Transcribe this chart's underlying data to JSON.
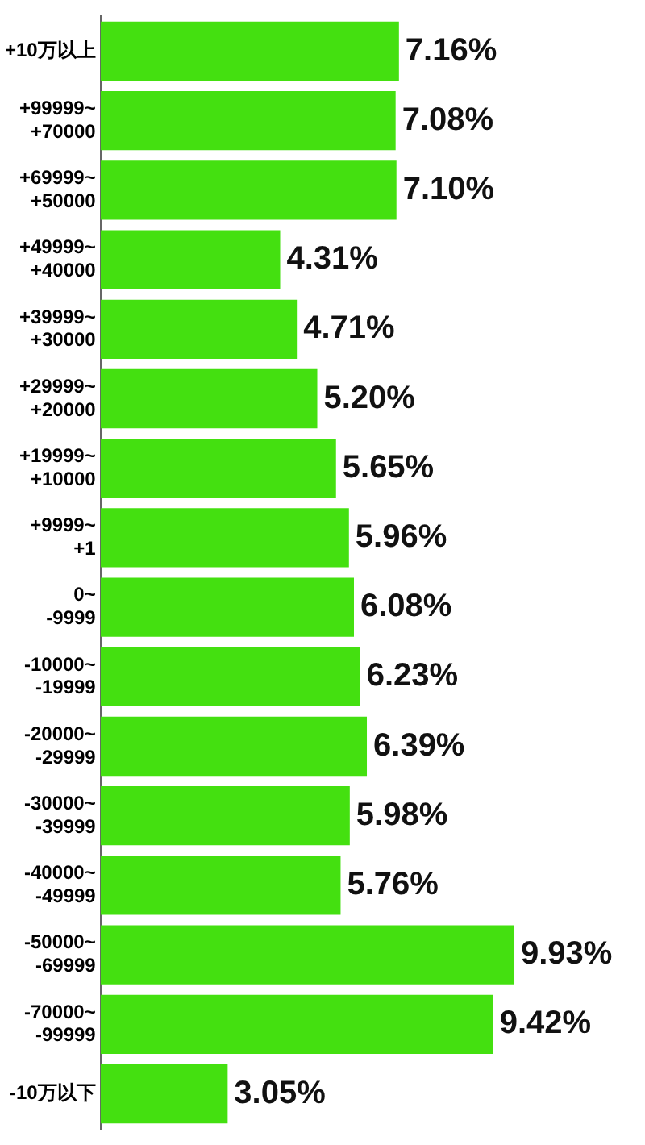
{
  "chart_data": {
    "type": "bar",
    "orientation": "horizontal",
    "categories": [
      "+10万以上",
      "+99999~+70000",
      "+69999~+50000",
      "+49999~+40000",
      "+39999~+30000",
      "+29999~+20000",
      "+19999~+10000",
      "+9999~+1",
      "0~-9999",
      "-10000~-19999",
      "-20000~-29999",
      "-30000~-39999",
      "-40000~-49999",
      "-50000~-69999",
      "-70000~-99999",
      "-10万以下"
    ],
    "values": [
      7.16,
      7.08,
      7.1,
      4.31,
      4.71,
      5.2,
      5.65,
      5.96,
      6.08,
      6.23,
      6.39,
      5.98,
      5.76,
      9.93,
      9.42,
      3.05
    ],
    "color": "#44e010",
    "value_labels": [
      "7.16%",
      "7.08%",
      "7.10%",
      "4.31%",
      "4.71%",
      "5.20%",
      "5.65%",
      "5.96%",
      "6.08%",
      "6.23%",
      "6.39%",
      "5.98%",
      "5.76%",
      "9.93%",
      "9.42%",
      "3.05%"
    ],
    "grid": false,
    "legend": false
  }
}
